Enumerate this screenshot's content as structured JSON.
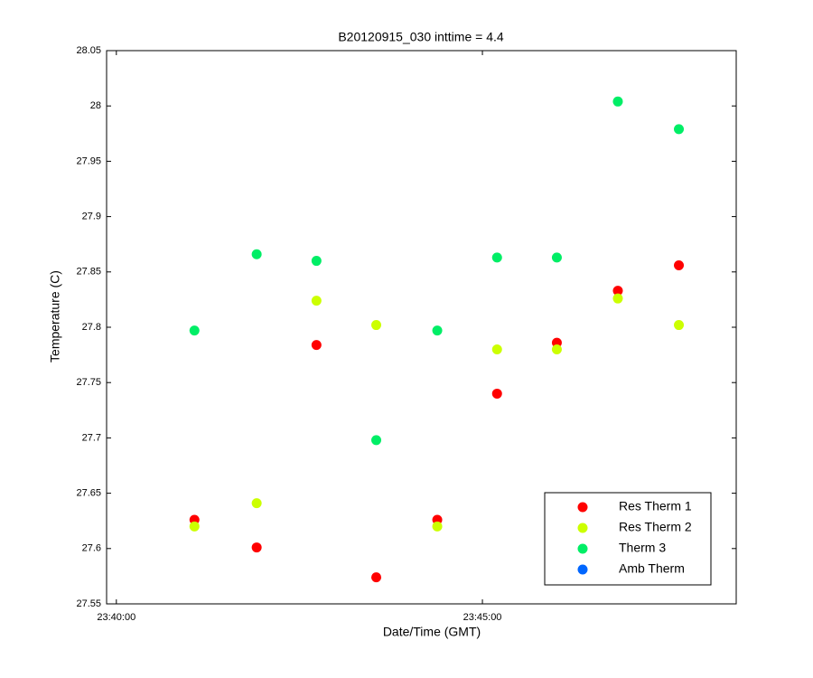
{
  "chart_data": {
    "type": "scatter",
    "title": "B20120915_030 inttime = 4.4",
    "x_label": "Date/Time (GMT)",
    "y_label": "Temperature (C)",
    "x": [
      "23:41:04",
      "23:41:55",
      "23:42:44",
      "23:43:33",
      "23:44:23",
      "23:45:12",
      "23:46:01",
      "23:46:51",
      "23:47:41"
    ],
    "series": [
      {
        "name": "Res Therm 1",
        "color": "#ff0000",
        "values": [
          27.626,
          27.601,
          27.784,
          27.574,
          27.626,
          27.74,
          27.786,
          27.833,
          27.856
        ]
      },
      {
        "name": "Res Therm 2",
        "color": "#ccff00",
        "values": [
          27.62,
          27.641,
          27.824,
          27.802,
          27.62,
          27.78,
          27.78,
          27.826,
          27.802
        ]
      },
      {
        "name": "Therm 3",
        "color": "#00ee66",
        "values": [
          27.797,
          27.866,
          27.86,
          27.698,
          27.797,
          27.863,
          27.863,
          28.004,
          27.979
        ]
      },
      {
        "name": "Amb Therm",
        "color": "#0066ff",
        "values": [
          null,
          null,
          null,
          null,
          null,
          null,
          null,
          null,
          null
        ]
      }
    ],
    "xlim": [
      "23:39:52",
      "23:48:28"
    ],
    "xticks": [
      "23:40:00",
      "23:45:00"
    ],
    "ylim": [
      27.55,
      28.05
    ],
    "yticks": [
      27.55,
      27.6,
      27.65,
      27.7,
      27.75,
      27.8,
      27.85,
      27.9,
      27.95,
      28,
      28.05
    ],
    "grid": false,
    "legend": "lower right"
  }
}
